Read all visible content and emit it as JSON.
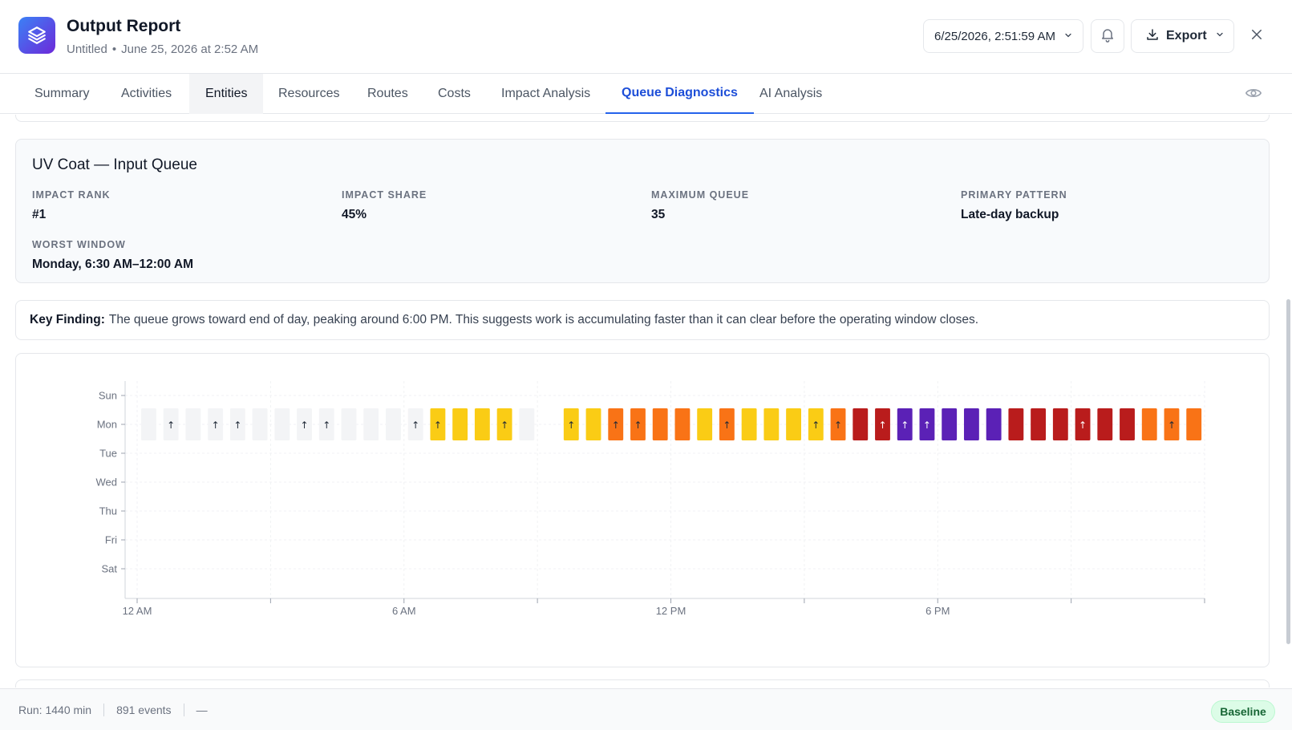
{
  "header": {
    "title": "Output Report",
    "subtitle_name": "Untitled",
    "subtitle_separator": "•",
    "subtitle_date": "June 25, 2026 at 2:52 AM",
    "datetime_value": "6/25/2026, 2:51:59 AM",
    "export_label": "Export"
  },
  "tabs": [
    {
      "label": "Summary",
      "state": "default"
    },
    {
      "label": "Activities",
      "state": "default"
    },
    {
      "label": "Entities",
      "state": "hover"
    },
    {
      "label": "Resources",
      "state": "default"
    },
    {
      "label": "Routes",
      "state": "default"
    },
    {
      "label": "Costs",
      "state": "default"
    },
    {
      "label": "Impact Analysis",
      "state": "default"
    },
    {
      "label": "Queue Diagnostics",
      "state": "active"
    },
    {
      "label": "AI Analysis",
      "state": "default"
    }
  ],
  "queue": {
    "title": "UV Coat — Input Queue",
    "stats": [
      {
        "label": "IMPACT RANK",
        "value": "#1"
      },
      {
        "label": "IMPACT SHARE",
        "value": "45%"
      },
      {
        "label": "MAXIMUM QUEUE",
        "value": "35"
      },
      {
        "label": "PRIMARY PATTERN",
        "value": "Late-day backup"
      },
      {
        "label": "WORST WINDOW",
        "value": "Monday, 6:30 AM–12:00 AM"
      }
    ]
  },
  "finding": {
    "label": "Key Finding:",
    "text": "The queue grows toward end of day, peaking around 6:00 PM. This suggests work is accumulating faster than it can clear before the operating window closes."
  },
  "chart_data": {
    "type": "heatmap",
    "rows": [
      "Sun",
      "Mon",
      "Tue",
      "Wed",
      "Thu",
      "Fri",
      "Sat"
    ],
    "x_ticks": [
      "12 AM",
      "6 AM",
      "12 PM",
      "6 PM"
    ],
    "x_unit": "hour of day",
    "x_range": [
      0,
      24
    ],
    "bin_minutes": 30,
    "cells": [
      {
        "row": "Mon",
        "hour": 0.0,
        "level": 0,
        "arrow": false
      },
      {
        "row": "Mon",
        "hour": 0.5,
        "level": 0,
        "arrow": true
      },
      {
        "row": "Mon",
        "hour": 1.0,
        "level": 0,
        "arrow": false
      },
      {
        "row": "Mon",
        "hour": 1.5,
        "level": 0,
        "arrow": true
      },
      {
        "row": "Mon",
        "hour": 2.0,
        "level": 0,
        "arrow": true
      },
      {
        "row": "Mon",
        "hour": 2.5,
        "level": 0,
        "arrow": false
      },
      {
        "row": "Mon",
        "hour": 3.0,
        "level": 0,
        "arrow": false
      },
      {
        "row": "Mon",
        "hour": 3.5,
        "level": 0,
        "arrow": true
      },
      {
        "row": "Mon",
        "hour": 4.0,
        "level": 0,
        "arrow": true
      },
      {
        "row": "Mon",
        "hour": 4.5,
        "level": 0,
        "arrow": false
      },
      {
        "row": "Mon",
        "hour": 5.0,
        "level": 0,
        "arrow": false
      },
      {
        "row": "Mon",
        "hour": 5.5,
        "level": 0,
        "arrow": false
      },
      {
        "row": "Mon",
        "hour": 6.0,
        "level": 0,
        "arrow": true
      },
      {
        "row": "Mon",
        "hour": 6.5,
        "level": 1,
        "arrow": true
      },
      {
        "row": "Mon",
        "hour": 7.0,
        "level": 1,
        "arrow": false
      },
      {
        "row": "Mon",
        "hour": 7.5,
        "level": 1,
        "arrow": false
      },
      {
        "row": "Mon",
        "hour": 8.0,
        "level": 1,
        "arrow": true
      },
      {
        "row": "Mon",
        "hour": 8.5,
        "level": 0,
        "arrow": false
      },
      {
        "row": "Mon",
        "hour": 9.5,
        "level": 1,
        "arrow": true
      },
      {
        "row": "Mon",
        "hour": 10.0,
        "level": 1,
        "arrow": false
      },
      {
        "row": "Mon",
        "hour": 10.5,
        "level": 2,
        "arrow": true
      },
      {
        "row": "Mon",
        "hour": 11.0,
        "level": 2,
        "arrow": true
      },
      {
        "row": "Mon",
        "hour": 11.5,
        "level": 2,
        "arrow": false
      },
      {
        "row": "Mon",
        "hour": 12.0,
        "level": 2,
        "arrow": false
      },
      {
        "row": "Mon",
        "hour": 12.5,
        "level": 1,
        "arrow": false
      },
      {
        "row": "Mon",
        "hour": 13.0,
        "level": 2,
        "arrow": true
      },
      {
        "row": "Mon",
        "hour": 13.5,
        "level": 1,
        "arrow": false
      },
      {
        "row": "Mon",
        "hour": 14.0,
        "level": 1,
        "arrow": false
      },
      {
        "row": "Mon",
        "hour": 14.5,
        "level": 1,
        "arrow": false
      },
      {
        "row": "Mon",
        "hour": 15.0,
        "level": 1,
        "arrow": true
      },
      {
        "row": "Mon",
        "hour": 15.5,
        "level": 2,
        "arrow": true
      },
      {
        "row": "Mon",
        "hour": 16.0,
        "level": 3,
        "arrow": false
      },
      {
        "row": "Mon",
        "hour": 16.5,
        "level": 3,
        "arrow": true
      },
      {
        "row": "Mon",
        "hour": 17.0,
        "level": 4,
        "arrow": true
      },
      {
        "row": "Mon",
        "hour": 17.5,
        "level": 4,
        "arrow": true
      },
      {
        "row": "Mon",
        "hour": 18.0,
        "level": 4,
        "arrow": false
      },
      {
        "row": "Mon",
        "hour": 18.5,
        "level": 4,
        "arrow": false
      },
      {
        "row": "Mon",
        "hour": 19.0,
        "level": 4,
        "arrow": false
      },
      {
        "row": "Mon",
        "hour": 19.5,
        "level": 3,
        "arrow": false
      },
      {
        "row": "Mon",
        "hour": 20.0,
        "level": 3,
        "arrow": false
      },
      {
        "row": "Mon",
        "hour": 20.5,
        "level": 3,
        "arrow": false
      },
      {
        "row": "Mon",
        "hour": 21.0,
        "level": 3,
        "arrow": true
      },
      {
        "row": "Mon",
        "hour": 21.5,
        "level": 3,
        "arrow": false
      },
      {
        "row": "Mon",
        "hour": 22.0,
        "level": 3,
        "arrow": false
      },
      {
        "row": "Mon",
        "hour": 22.5,
        "level": 2,
        "arrow": false
      },
      {
        "row": "Mon",
        "hour": 23.0,
        "level": 2,
        "arrow": true
      },
      {
        "row": "Mon",
        "hour": 23.5,
        "level": 2,
        "arrow": false
      }
    ],
    "level_colors": [
      "#f3f4f6",
      "#facc15",
      "#f97316",
      "#b91c1c",
      "#5b21b6"
    ],
    "arrow_glyph": "↑",
    "grid": true
  },
  "footer": {
    "run": "Run: 1440 min",
    "events": "891 events",
    "dash": "—",
    "badge": "Baseline"
  },
  "colors": {
    "accent": "#2563eb",
    "app_icon_start": "#3b82f6",
    "app_icon_end": "#6d28d9",
    "badge_bg": "#dcfce7",
    "badge_text": "#166534"
  },
  "icons": {
    "app": "layers-icon",
    "date_chevron": "chevron-down-icon",
    "notifications": "bell-icon",
    "export": "download-icon",
    "export_chevron": "chevron-down-icon",
    "close": "close-icon",
    "visibility": "eye-icon"
  }
}
